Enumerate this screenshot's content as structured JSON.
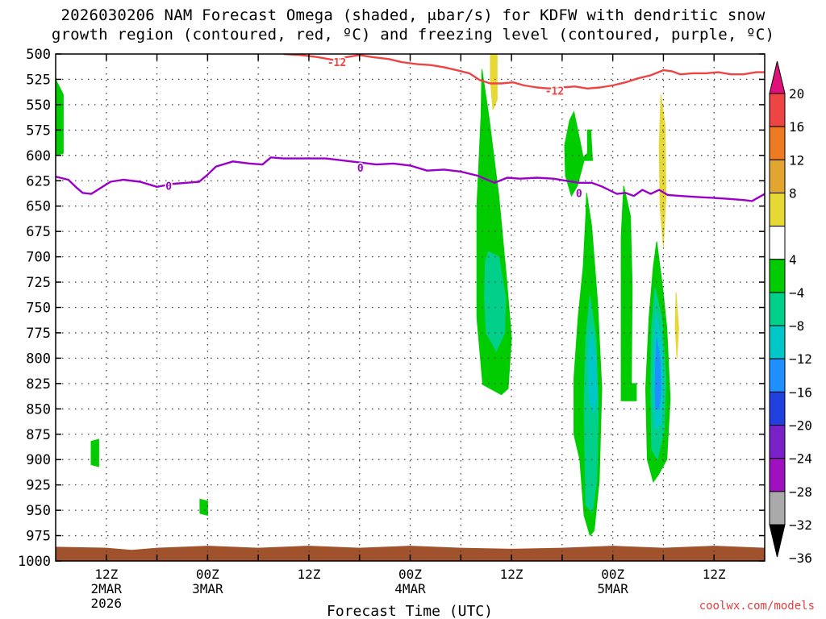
{
  "title": {
    "line1": "2026030206 NAM Forecast Omega (shaded, μbar/s) for KDFW with dendritic snow",
    "line2": "growth region (contoured, red, ºC) and freezing level (contoured, purple, ºC)"
  },
  "credit": "coolwx.com/models",
  "chart_data": {
    "type": "heatmap",
    "xlabel": "Forecast Time (UTC)",
    "ylabel": "",
    "x_unit": "forecast hour from 2026-03-02 06Z",
    "xlim": [
      0,
      84
    ],
    "ylim": [
      1000,
      500
    ],
    "y_ticks": [
      500,
      525,
      550,
      575,
      600,
      625,
      650,
      675,
      700,
      725,
      750,
      775,
      800,
      825,
      850,
      875,
      900,
      925,
      950,
      975,
      1000
    ],
    "x_ticks": [
      {
        "hour": 6,
        "lines": [
          "12Z",
          "2MAR",
          "2026"
        ]
      },
      {
        "hour": 18,
        "lines": [
          "00Z",
          "3MAR"
        ]
      },
      {
        "hour": 30,
        "lines": [
          "12Z"
        ]
      },
      {
        "hour": 42,
        "lines": [
          "00Z",
          "4MAR"
        ]
      },
      {
        "hour": 54,
        "lines": [
          "12Z"
        ]
      },
      {
        "hour": 66,
        "lines": [
          "00Z",
          "5MAR"
        ]
      },
      {
        "hour": 78,
        "lines": [
          "12Z"
        ]
      }
    ],
    "grid": true,
    "colorbar": {
      "labels": [
        "20",
        "16",
        "12",
        "8",
        "4",
        "−4",
        "−8",
        "−12",
        "−16",
        "−20",
        "−24",
        "−28",
        "−32",
        "−36"
      ],
      "bins": [
        {
          "range": [
            16,
            20
          ],
          "color": "#ee4444"
        },
        {
          "range": [
            12,
            16
          ],
          "color": "#ee7a22"
        },
        {
          "range": [
            8,
            12
          ],
          "color": "#e2a530"
        },
        {
          "range": [
            4,
            8
          ],
          "color": "#e6d835"
        },
        {
          "range": [
            -4,
            4
          ],
          "color": "#ffffff"
        },
        {
          "range": [
            -8,
            -4
          ],
          "color": "#00cc00"
        },
        {
          "range": [
            -12,
            -8
          ],
          "color": "#00d08a"
        },
        {
          "range": [
            -16,
            -12
          ],
          "color": "#00c8c8"
        },
        {
          "range": [
            -20,
            -16
          ],
          "color": "#1e90ff"
        },
        {
          "range": [
            -24,
            -20
          ],
          "color": "#2040e0"
        },
        {
          "range": [
            -28,
            -24
          ],
          "color": "#7a20c8"
        },
        {
          "range": [
            -32,
            -28
          ],
          "color": "#a010c0"
        },
        {
          "range": [
            -36,
            -32
          ],
          "color": "#aaaaaa"
        }
      ],
      "top_color": "#e0107a",
      "bottom_color": "#000000"
    },
    "omega_regions": [
      {
        "value": -6,
        "color": "#00cc00",
        "points": [
          [
            0,
            525
          ],
          [
            0.9,
            540
          ],
          [
            0.9,
            598
          ],
          [
            0,
            600
          ]
        ]
      },
      {
        "value": -6,
        "color": "#00cc00",
        "points": [
          [
            4.2,
            882
          ],
          [
            5.1,
            880
          ],
          [
            5.1,
            907
          ],
          [
            4.2,
            905
          ]
        ]
      },
      {
        "value": -6,
        "color": "#00cc00",
        "points": [
          [
            17.1,
            939
          ],
          [
            18.0,
            941
          ],
          [
            18.0,
            955
          ],
          [
            17.1,
            953
          ]
        ]
      },
      {
        "value": -6,
        "color": "#00cc00",
        "points": [
          [
            50.5,
            515
          ],
          [
            51.3,
            560
          ],
          [
            52.5,
            640
          ],
          [
            53.4,
            720
          ],
          [
            54.0,
            780
          ],
          [
            53.6,
            830
          ],
          [
            52.8,
            836
          ],
          [
            50.6,
            826
          ],
          [
            49.9,
            760
          ],
          [
            49.9,
            650
          ],
          [
            50.4,
            560
          ]
        ]
      },
      {
        "value": -10,
        "color": "#00d08a",
        "points": [
          [
            51.3,
            695
          ],
          [
            52.5,
            700
          ],
          [
            53.3,
            740
          ],
          [
            53.2,
            775
          ],
          [
            52.2,
            793
          ],
          [
            51.0,
            775
          ],
          [
            50.8,
            740
          ],
          [
            50.9,
            705
          ]
        ]
      },
      {
        "value": -6,
        "color": "#00cc00",
        "points": [
          [
            61.4,
            557
          ],
          [
            62.1,
            585
          ],
          [
            62.5,
            602
          ],
          [
            63.0,
            598
          ],
          [
            63.0,
            575
          ],
          [
            63.4,
            575
          ],
          [
            63.6,
            605
          ],
          [
            62.6,
            605
          ],
          [
            61.8,
            630
          ],
          [
            61.1,
            640
          ],
          [
            60.4,
            620
          ],
          [
            60.3,
            590
          ],
          [
            60.9,
            565
          ]
        ]
      },
      {
        "value": -6,
        "color": "#00cc00",
        "points": [
          [
            62.9,
            637
          ],
          [
            63.5,
            670
          ],
          [
            64.2,
            745
          ],
          [
            64.7,
            830
          ],
          [
            64.4,
            920
          ],
          [
            63.8,
            970
          ],
          [
            63.3,
            975
          ],
          [
            62.6,
            955
          ],
          [
            62.1,
            900
          ],
          [
            61.4,
            875
          ],
          [
            61.4,
            820
          ],
          [
            61.9,
            760
          ],
          [
            62.5,
            710
          ],
          [
            62.8,
            660
          ]
        ]
      },
      {
        "value": -10,
        "color": "#00d08a",
        "points": [
          [
            63.3,
            738
          ],
          [
            64.0,
            780
          ],
          [
            64.3,
            850
          ],
          [
            64.1,
            920
          ],
          [
            63.6,
            952
          ],
          [
            62.8,
            945
          ],
          [
            62.7,
            900
          ],
          [
            62.6,
            840
          ],
          [
            62.8,
            780
          ]
        ]
      },
      {
        "value": -14,
        "color": "#00c8c8",
        "points": [
          [
            63.4,
            770
          ],
          [
            64.0,
            800
          ],
          [
            64.1,
            840
          ],
          [
            63.7,
            855
          ],
          [
            63.2,
            840
          ],
          [
            63.1,
            800
          ]
        ]
      },
      {
        "value": -6,
        "color": "#00cc00",
        "points": [
          [
            67.3,
            630
          ],
          [
            68.1,
            660
          ],
          [
            68.3,
            730
          ],
          [
            68.2,
            825
          ],
          [
            68.8,
            825
          ],
          [
            68.8,
            842
          ],
          [
            67.0,
            842
          ],
          [
            67.0,
            760
          ],
          [
            67.0,
            680
          ]
        ]
      },
      {
        "value": -6,
        "color": "#00cc00",
        "points": [
          [
            71.2,
            685
          ],
          [
            71.9,
            730
          ],
          [
            72.4,
            770
          ],
          [
            72.8,
            840
          ],
          [
            72.4,
            900
          ],
          [
            71.4,
            915
          ],
          [
            70.8,
            922
          ],
          [
            70.1,
            900
          ],
          [
            69.9,
            830
          ],
          [
            70.3,
            760
          ],
          [
            70.8,
            710
          ]
        ]
      },
      {
        "value": -10,
        "color": "#00d08a",
        "points": [
          [
            71.0,
            730
          ],
          [
            71.8,
            760
          ],
          [
            72.3,
            820
          ],
          [
            72.1,
            870
          ],
          [
            71.3,
            900
          ],
          [
            70.6,
            890
          ],
          [
            70.5,
            830
          ],
          [
            70.6,
            770
          ]
        ]
      },
      {
        "value": -14,
        "color": "#00c8c8",
        "points": [
          [
            71.1,
            755
          ],
          [
            71.8,
            785
          ],
          [
            72.0,
            830
          ],
          [
            71.7,
            865
          ],
          [
            71.0,
            870
          ],
          [
            70.8,
            830
          ],
          [
            70.9,
            790
          ]
        ]
      },
      {
        "value": -18,
        "color": "#1e90ff",
        "points": [
          [
            71.2,
            780
          ],
          [
            71.6,
            800
          ],
          [
            71.7,
            830
          ],
          [
            71.5,
            850
          ],
          [
            71.1,
            850
          ],
          [
            71.0,
            830
          ],
          [
            71.1,
            800
          ]
        ]
      },
      {
        "value": 6,
        "color": "#e6d835",
        "points": [
          [
            51.5,
            500
          ],
          [
            52.3,
            500
          ],
          [
            52.3,
            545
          ],
          [
            51.8,
            555
          ],
          [
            51.5,
            525
          ]
        ]
      },
      {
        "value": 6,
        "color": "#e6d835",
        "points": [
          [
            71.7,
            540
          ],
          [
            72.2,
            570
          ],
          [
            72.3,
            640
          ],
          [
            72.0,
            690
          ],
          [
            71.6,
            650
          ],
          [
            71.5,
            590
          ]
        ]
      },
      {
        "value": 6,
        "color": "#e6d835",
        "points": [
          [
            73.5,
            735
          ],
          [
            73.8,
            770
          ],
          [
            73.6,
            800
          ],
          [
            73.4,
            770
          ]
        ]
      }
    ],
    "ground": {
      "color": "#a0522d",
      "top": [
        [
          0,
          986
        ],
        [
          6,
          987
        ],
        [
          9,
          989
        ],
        [
          12,
          987
        ],
        [
          18,
          985
        ],
        [
          24,
          987
        ],
        [
          30,
          985
        ],
        [
          36,
          987
        ],
        [
          42,
          985
        ],
        [
          48,
          987
        ],
        [
          54,
          988
        ],
        [
          60,
          987
        ],
        [
          66,
          985
        ],
        [
          72,
          987
        ],
        [
          78,
          985
        ],
        [
          84,
          987
        ]
      ]
    },
    "contours": [
      {
        "name": "dendritic -12C",
        "color": "#ee4444",
        "label": "-12",
        "label_positions": [
          [
            33.3,
            508
          ],
          [
            59.1,
            536
          ]
        ],
        "points": [
          [
            27,
            500
          ],
          [
            29,
            501
          ],
          [
            31,
            503
          ],
          [
            33,
            506
          ],
          [
            34.5,
            503
          ],
          [
            36,
            501
          ],
          [
            37.5,
            503
          ],
          [
            39.5,
            505
          ],
          [
            41,
            508
          ],
          [
            42.8,
            510
          ],
          [
            44.5,
            511
          ],
          [
            46,
            513
          ],
          [
            47.5,
            516
          ],
          [
            49,
            519
          ],
          [
            50.3,
            526
          ],
          [
            51.5,
            529
          ],
          [
            52.8,
            529
          ],
          [
            54.2,
            528
          ],
          [
            55.5,
            531
          ],
          [
            57,
            533
          ],
          [
            58.5,
            534
          ],
          [
            60,
            533
          ],
          [
            61.5,
            532
          ],
          [
            63,
            534
          ],
          [
            64.5,
            533
          ],
          [
            66,
            531
          ],
          [
            67.5,
            528
          ],
          [
            69,
            524
          ],
          [
            70.5,
            521
          ],
          [
            72,
            516
          ],
          [
            73,
            517
          ],
          [
            74,
            520
          ],
          [
            75.5,
            519
          ],
          [
            77,
            519
          ],
          [
            78.5,
            518
          ],
          [
            80,
            520
          ],
          [
            81.5,
            520
          ],
          [
            83,
            518
          ],
          [
            84,
            518
          ]
        ]
      },
      {
        "name": "freezing 0C",
        "color": "#9a00c8",
        "label": "0",
        "label_positions": [
          [
            13.4,
            630
          ],
          [
            36.1,
            612
          ],
          [
            62.0,
            637
          ]
        ],
        "points": [
          [
            0,
            621
          ],
          [
            1.5,
            624
          ],
          [
            2.5,
            632
          ],
          [
            3.2,
            637
          ],
          [
            4.2,
            638
          ],
          [
            6.5,
            626
          ],
          [
            8,
            624
          ],
          [
            10,
            626
          ],
          [
            12,
            631
          ],
          [
            14,
            628
          ],
          [
            15.5,
            627
          ],
          [
            17,
            626
          ],
          [
            18,
            619
          ],
          [
            19,
            611
          ],
          [
            21,
            606
          ],
          [
            23,
            608
          ],
          [
            24.5,
            609
          ],
          [
            25.5,
            602
          ],
          [
            27,
            603
          ],
          [
            30,
            603
          ],
          [
            32,
            603
          ],
          [
            34,
            605
          ],
          [
            36,
            607
          ],
          [
            38,
            609
          ],
          [
            40,
            608
          ],
          [
            42,
            610
          ],
          [
            44,
            615
          ],
          [
            46,
            614
          ],
          [
            48,
            616
          ],
          [
            50,
            620
          ],
          [
            52,
            627
          ],
          [
            53.5,
            622
          ],
          [
            55,
            623
          ],
          [
            57,
            622
          ],
          [
            59,
            623
          ],
          [
            60.5,
            625
          ],
          [
            62,
            627
          ],
          [
            63.5,
            627
          ],
          [
            64.8,
            631
          ],
          [
            66.5,
            638
          ],
          [
            67.5,
            637
          ],
          [
            68.5,
            640
          ],
          [
            69.5,
            634
          ],
          [
            70.5,
            638
          ],
          [
            71.5,
            634
          ],
          [
            72.5,
            639
          ],
          [
            74,
            640
          ],
          [
            76,
            641
          ],
          [
            78,
            642
          ],
          [
            80,
            643
          ],
          [
            81.5,
            644
          ],
          [
            82.5,
            645
          ],
          [
            84,
            638
          ]
        ]
      }
    ]
  }
}
